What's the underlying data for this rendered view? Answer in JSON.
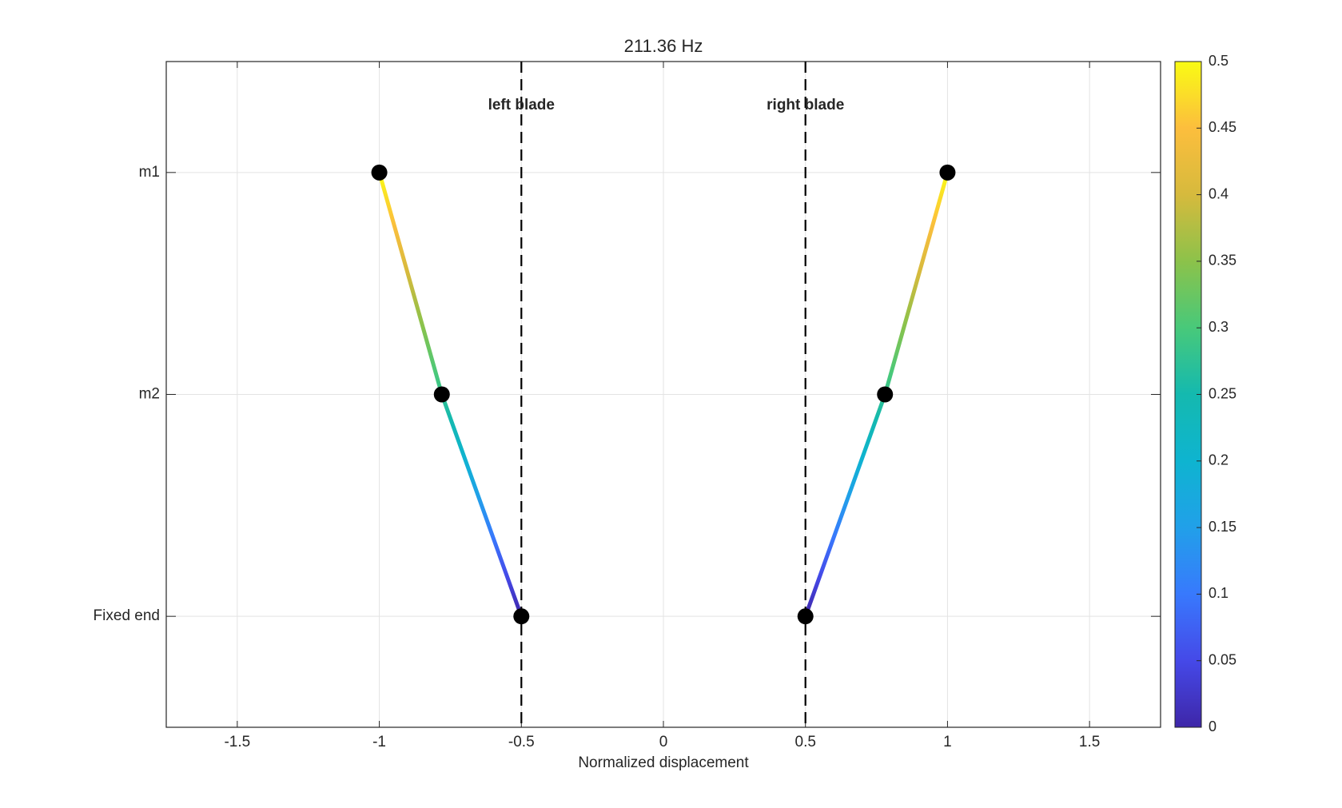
{
  "chart_data": {
    "type": "line",
    "title": "211.36 Hz",
    "xlabel": "Normalized displacement",
    "xlim": [
      -1.75,
      1.75
    ],
    "xticks": [
      -1.5,
      -1,
      -0.5,
      0,
      0.5,
      1,
      1.5
    ],
    "ylim": [
      -0.5,
      2.5
    ],
    "yticks": [
      {
        "value": 0,
        "label": "Fixed end"
      },
      {
        "value": 1,
        "label": "m2"
      },
      {
        "value": 2,
        "label": "m1"
      }
    ],
    "grid": true,
    "marker_color": "#000000",
    "series": [
      {
        "x": [
          -0.5,
          -0.78,
          -1
        ],
        "values": [
          0,
          1,
          2
        ],
        "rest": -0.5
      },
      {
        "x": [
          0.5,
          0.78,
          1
        ],
        "values": [
          0,
          1,
          2
        ],
        "rest": 0.5
      }
    ],
    "annotations": [
      {
        "x": -0.5,
        "label": "left blade"
      },
      {
        "x": 0.5,
        "label": "right blade"
      }
    ],
    "colorbar": {
      "colormap": "parula",
      "clim": [
        0,
        0.5
      ],
      "ticks": [
        0,
        0.05,
        0.1,
        0.15,
        0.2,
        0.25,
        0.3,
        0.35,
        0.4,
        0.45,
        0.5
      ]
    }
  }
}
